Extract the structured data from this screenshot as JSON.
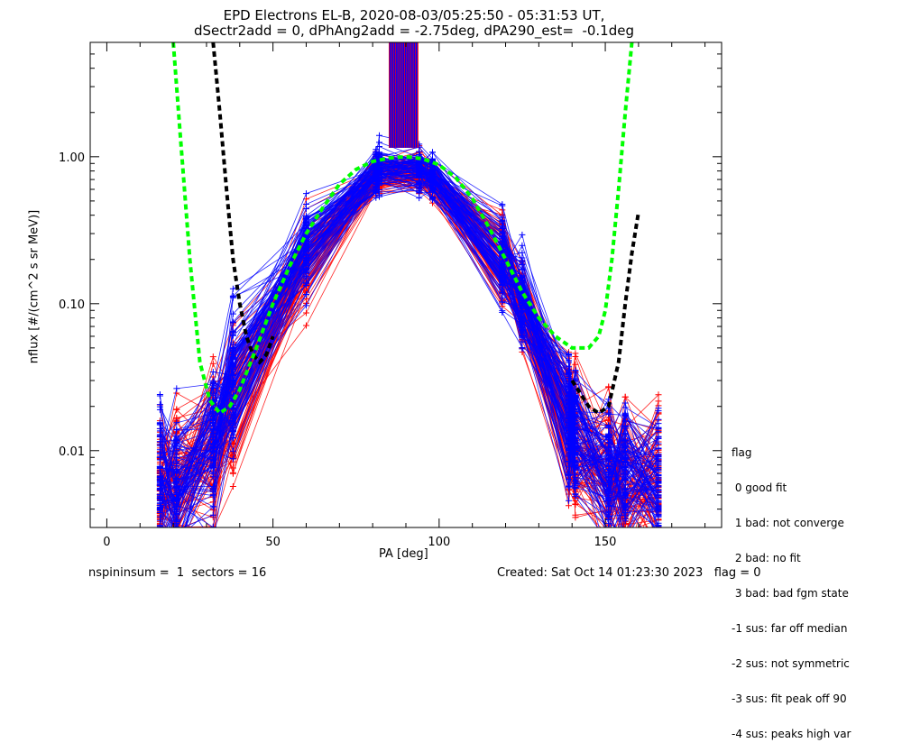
{
  "title_line1": "EPD Electrons EL-B, 2020-08-03/05:25:50 - 05:31:53 UT,",
  "title_line2": "dSectr2add = 0, dPhAng2add = -2.75deg, dPA290_est=  -0.1deg",
  "footer_left": "nspininsum =  1  sectors = 16",
  "footer_right": "Created: Sat Oct 14 01:23:30 2023   flag = 0",
  "legend": {
    "title": "flag",
    "items": [
      " 0 good fit",
      " 1 bad: not converge",
      " 2 bad: no fit",
      " 3 bad: bad fgm state",
      "-1 sus: far off median",
      "-2 sus: not symmetric",
      "-3 sus: fit peak off 90",
      "-4 sus: peaks high var"
    ]
  },
  "colors": {
    "series_a": "#ff0000",
    "series_b": "#0000ff",
    "fit_green": "#00ff00",
    "fit_black": "#000000"
  },
  "chart_data": {
    "type": "line",
    "xlabel": "PA [deg]",
    "ylabel": "nflux [#/(cm^2 s sr MeV)]",
    "xlim": [
      -5,
      185
    ],
    "ylim": [
      0.003,
      6
    ],
    "yscale": "log",
    "x_ticks": [
      "0",
      "50",
      "100",
      "150"
    ],
    "y_ticks": [
      "0.01",
      "0.10",
      "1.00"
    ],
    "sector_pa": [
      16,
      21,
      32,
      38,
      60,
      81,
      82,
      94,
      98,
      119,
      125,
      139,
      141,
      151,
      156,
      166
    ],
    "series": [
      {
        "color": "red",
        "median_flux": [
          0.006,
          0.006,
          0.01,
          0.022,
          0.2,
          0.72,
          0.75,
          0.78,
          0.66,
          0.2,
          0.1,
          0.015,
          0.012,
          0.007,
          0.006,
          0.006
        ]
      },
      {
        "color": "blue",
        "median_flux": [
          0.006,
          0.006,
          0.012,
          0.03,
          0.25,
          0.8,
          0.85,
          0.85,
          0.75,
          0.22,
          0.11,
          0.016,
          0.013,
          0.008,
          0.007,
          0.007
        ]
      }
    ],
    "fit_green": {
      "x": [
        20,
        22,
        25,
        28,
        31,
        34,
        37,
        40,
        45,
        50,
        55,
        60,
        65,
        70,
        75,
        80,
        85,
        90,
        95,
        100,
        105,
        110,
        115,
        120,
        125,
        130,
        135,
        140,
        145,
        148,
        150,
        152,
        154,
        156,
        158
      ],
      "y": [
        6,
        1.5,
        0.2,
        0.04,
        0.022,
        0.018,
        0.02,
        0.026,
        0.05,
        0.1,
        0.18,
        0.3,
        0.45,
        0.65,
        0.82,
        0.93,
        0.98,
        1.0,
        0.97,
        0.88,
        0.72,
        0.52,
        0.33,
        0.2,
        0.12,
        0.08,
        0.06,
        0.05,
        0.05,
        0.06,
        0.09,
        0.2,
        0.6,
        2.0,
        6.0
      ]
    },
    "fit_black": {
      "x": [
        32,
        34,
        36,
        38,
        40,
        42,
        44,
        46,
        48,
        50,
        140,
        145,
        148,
        151,
        154,
        156,
        158,
        160
      ],
      "y": [
        6,
        2.0,
        0.6,
        0.2,
        0.1,
        0.06,
        0.045,
        0.04,
        0.045,
        0.06,
        0.03,
        0.02,
        0.018,
        0.02,
        0.04,
        0.1,
        0.22,
        0.42
      ]
    }
  }
}
